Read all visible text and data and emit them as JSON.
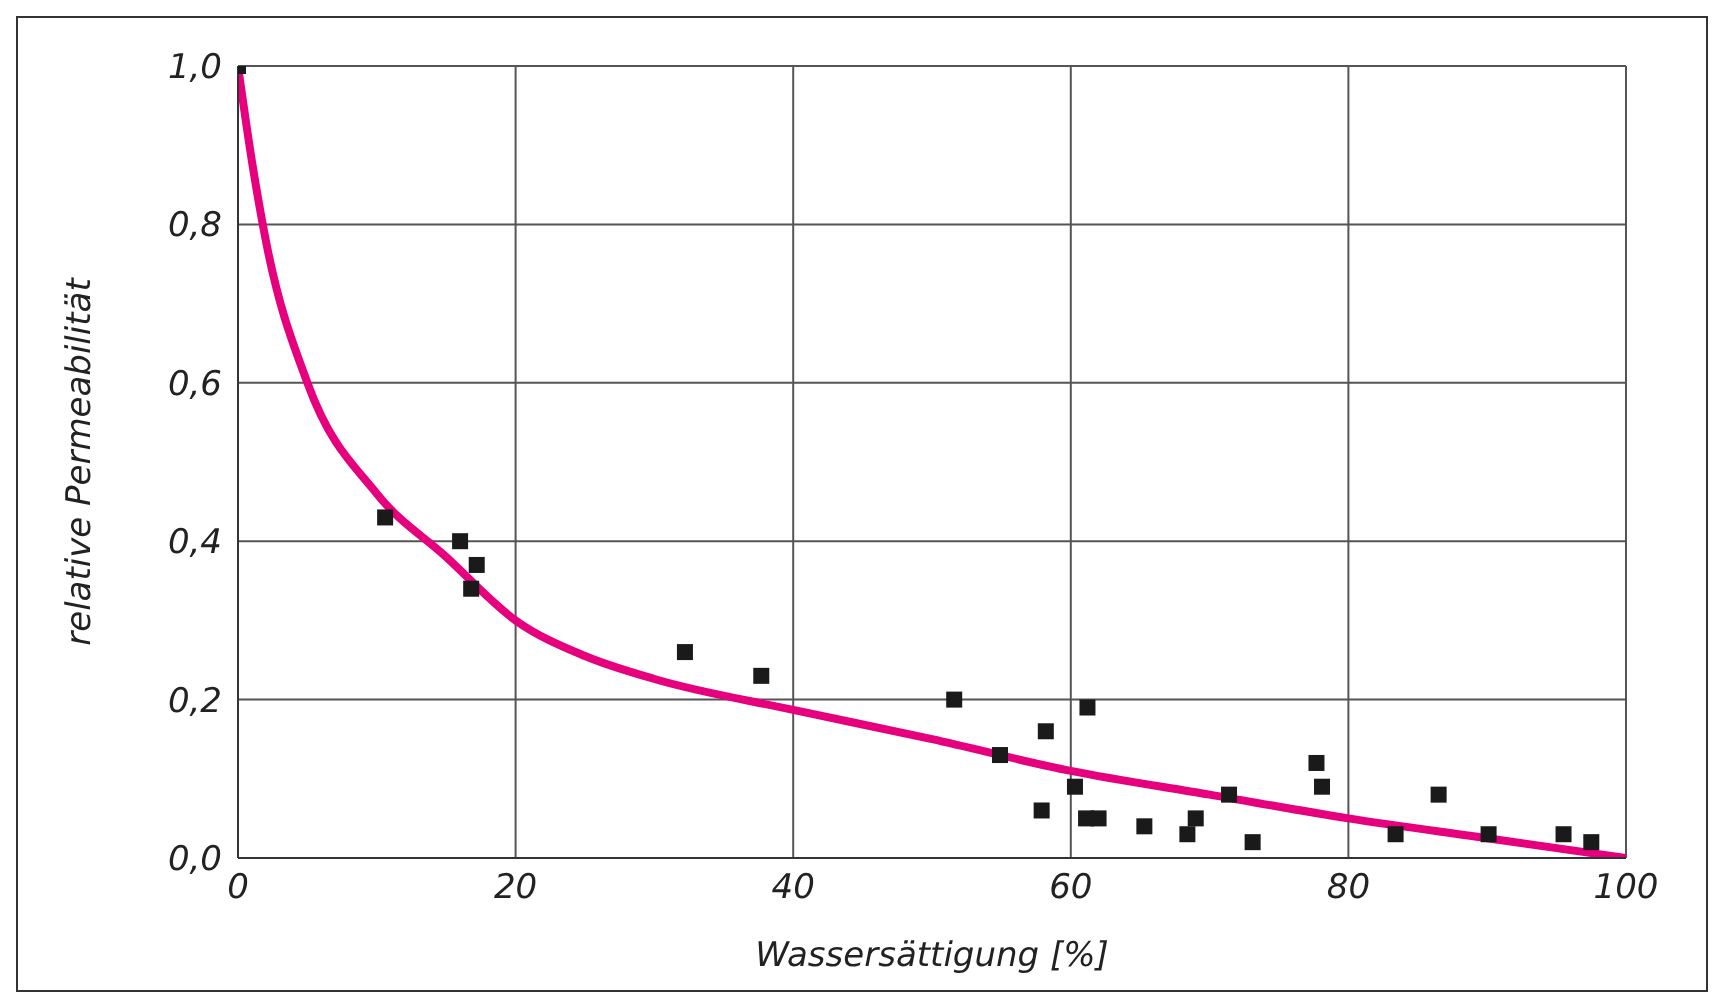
{
  "chart_data": {
    "type": "scatter",
    "xlabel": "Wassersättigung [%]",
    "ylabel": "relative Permeabilität",
    "xlim": [
      0,
      100
    ],
    "ylim": [
      0,
      1
    ],
    "xticks": [
      0,
      20,
      40,
      60,
      80,
      100
    ],
    "yticks": [
      {
        "value": 0,
        "label": "0,0"
      },
      {
        "value": 0.2,
        "label": "0,2"
      },
      {
        "value": 0.4,
        "label": "0,4"
      },
      {
        "value": 0.6,
        "label": "0,6"
      },
      {
        "value": 0.8,
        "label": "0,8"
      },
      {
        "value": 1,
        "label": "1,0"
      }
    ],
    "grid": true,
    "marker": "square",
    "series": [
      {
        "color": "#1a1a1a",
        "x": [
          0,
          10.6,
          16.0,
          17.2,
          16.8,
          32.2,
          37.7,
          51.6,
          54.9,
          58.2,
          57.9,
          61.2,
          60.3,
          61.1,
          62.0,
          65.3,
          68.4,
          69.0,
          71.4,
          73.1,
          77.7,
          78.1,
          83.4,
          86.5,
          90.1,
          95.5,
          97.5
        ],
        "values": [
          1.0,
          0.43,
          0.4,
          0.37,
          0.34,
          0.26,
          0.23,
          0.2,
          0.13,
          0.16,
          0.06,
          0.19,
          0.09,
          0.05,
          0.05,
          0.04,
          0.03,
          0.05,
          0.08,
          0.02,
          0.12,
          0.09,
          0.03,
          0.08,
          0.03,
          0.03,
          0.02
        ]
      },
      {
        "type": "line",
        "color": "#e6007e",
        "marker": "none",
        "x": [
          0,
          1,
          2,
          5,
          10,
          15,
          20,
          25,
          30,
          40,
          50,
          60,
          70,
          80,
          90,
          100
        ],
        "values": [
          1.0,
          0.88,
          0.78,
          0.6,
          0.46,
          0.38,
          0.3,
          0.255,
          0.226,
          0.187,
          0.15,
          0.11,
          0.08,
          0.05,
          0.025,
          0.0
        ]
      }
    ]
  }
}
